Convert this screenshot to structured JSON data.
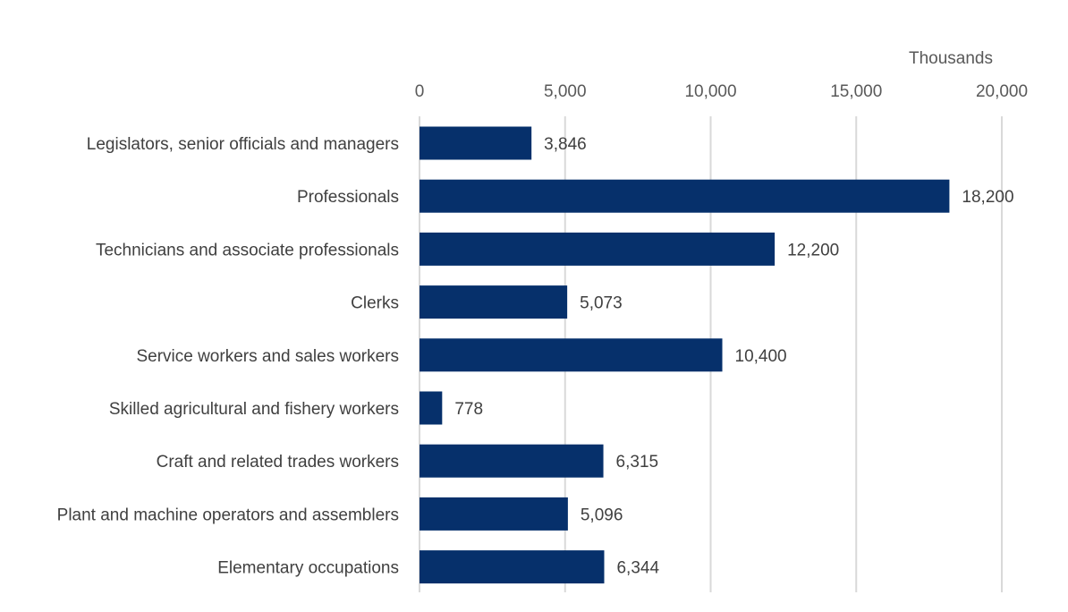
{
  "chart_data": {
    "type": "bar",
    "orientation": "horizontal",
    "unit_label": "Thousands",
    "categories": [
      "Legislators, senior officials and managers",
      "Professionals",
      "Technicians and associate professionals",
      "Clerks",
      "Service workers and sales workers",
      "Skilled agricultural and fishery workers",
      "Craft and related trades workers",
      "Plant and machine operators and assemblers",
      "Elementary occupations"
    ],
    "values": [
      3846,
      18200,
      12200,
      5073,
      10400,
      778,
      6315,
      5096,
      6344
    ],
    "value_labels": [
      "3,846",
      "18,200",
      "12,200",
      "5,073",
      "10,400",
      "778",
      "6,315",
      "5,096",
      "6,344"
    ],
    "xlim": [
      0,
      20000
    ],
    "xticks": [
      0,
      5000,
      10000,
      15000,
      20000
    ],
    "xtick_labels": [
      "0",
      "5,000",
      "10,000",
      "15,000",
      "20,000"
    ],
    "axis_position": "top",
    "grid": true,
    "legend": false,
    "colors": {
      "bar": "#06306b",
      "grid": "#d9d9d9",
      "text": "#404040"
    }
  }
}
